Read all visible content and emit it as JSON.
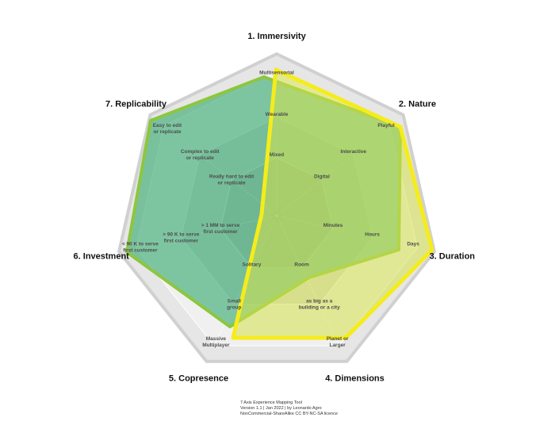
{
  "axes": [
    {
      "label": "1. Immersivity",
      "levels": [
        [
          "Mixed"
        ],
        [
          "Wearable"
        ],
        [
          "Multisensorial"
        ]
      ]
    },
    {
      "label": "2. Nature",
      "levels": [
        [
          "Digital"
        ],
        [
          "Interactive"
        ],
        [
          "Playful"
        ]
      ]
    },
    {
      "label": "3. Duration",
      "levels": [
        [
          "Minutes"
        ],
        [
          "Hours"
        ],
        [
          "Days"
        ]
      ]
    },
    {
      "label": "4. Dimensions",
      "levels": [
        [
          "Room"
        ],
        [
          "as big as a",
          "building or a city"
        ],
        [
          "Planet or",
          "Larger"
        ]
      ]
    },
    {
      "label": "5. Copresence",
      "levels": [
        [
          "Solitary"
        ],
        [
          "Small",
          "group"
        ],
        [
          "Massive",
          "Multiplayer"
        ]
      ]
    },
    {
      "label": "6. Investment",
      "levels": [
        [
          "> 1 MM to serve",
          "first customer"
        ],
        [
          "> 90 K to serve",
          "first customer"
        ],
        [
          "< 90 K to serve",
          "first customer"
        ]
      ]
    },
    {
      "label": "7. Replicability",
      "levels": [
        [
          "Really hard to edit",
          "or replicate"
        ],
        [
          "Complex to edit",
          "or replicate"
        ],
        [
          "Easy to edit",
          "or replicate"
        ]
      ]
    }
  ],
  "footer": {
    "title": "7 Axis Experience Mapping Tool",
    "version": "Version 1.1 | Jan 2022 | by Leonardo Agro",
    "licence": "NonCommercial-ShareAlike CC BY-NC-SA licence"
  }
}
